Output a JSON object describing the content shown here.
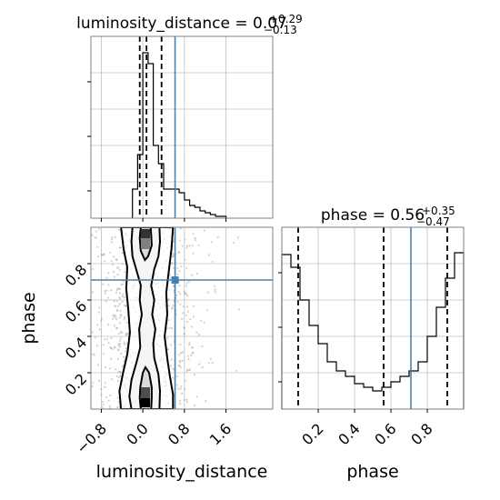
{
  "chart_data": {
    "type": "corner",
    "parameters": [
      "luminosity_distance",
      "phase"
    ],
    "truth": {
      "luminosity_distance": 0.62,
      "phase": 0.71
    },
    "colors": {
      "truth": "#4682b4",
      "hist": "#000000",
      "grid": "#c0c0c0",
      "frame": "#808080"
    },
    "panels": {
      "hist_luminosity_distance": {
        "type": "histogram",
        "title_prefix": "luminosity_distance = ",
        "value": "0.07",
        "err_plus": "+0.29",
        "err_minus": "−0.13",
        "xlim": [
          -1.0,
          2.5
        ],
        "ylim": [
          0,
          100
        ],
        "bin_edges": [
          -0.2,
          -0.1,
          0.0,
          0.1,
          0.2,
          0.3,
          0.4,
          0.5,
          0.6,
          0.7,
          0.8,
          0.9,
          1.0,
          1.1,
          1.2,
          1.3,
          1.4,
          1.5,
          1.6
        ],
        "counts": [
          16,
          35,
          91,
          85,
          40,
          30,
          16,
          16,
          16,
          14,
          10,
          7,
          6,
          4,
          3,
          2,
          1,
          1
        ],
        "quantiles": [
          -0.06,
          0.07,
          0.36
        ]
      },
      "hist_phase": {
        "type": "histogram",
        "title_prefix": "phase = ",
        "value": "0.56",
        "err_plus": "+0.35",
        "err_minus": "−0.47",
        "xlim": [
          0.0,
          1.0
        ],
        "ylim": [
          0,
          100
        ],
        "bin_edges": [
          0.0,
          0.05,
          0.1,
          0.15,
          0.2,
          0.25,
          0.3,
          0.35,
          0.4,
          0.45,
          0.5,
          0.55,
          0.6,
          0.65,
          0.7,
          0.75,
          0.8,
          0.85,
          0.9,
          0.95,
          1.0
        ],
        "counts": [
          85,
          78,
          60,
          46,
          36,
          26,
          21,
          18,
          14,
          12,
          10,
          12,
          15,
          18,
          21,
          26,
          40,
          56,
          72,
          86
        ],
        "quantiles": [
          0.09,
          0.56,
          0.91
        ]
      },
      "joint": {
        "type": "contour",
        "x": "luminosity_distance",
        "y": "phase",
        "xlim": [
          -1.0,
          2.5
        ],
        "ylim": [
          0.0,
          1.0
        ],
        "xticks": [
          "−0.8",
          "0.0",
          "0.8",
          "1.6"
        ],
        "xtick_values": [
          -0.8,
          0.0,
          0.8,
          1.6
        ],
        "yticks": [
          "0.2",
          "0.4",
          "0.6",
          "0.8"
        ],
        "ytick_values": [
          0.2,
          0.4,
          0.6,
          0.8
        ],
        "hot_spots": [
          {
            "x": 0.05,
            "y": 0.04,
            "value": 1.0
          },
          {
            "x": 0.05,
            "y": 0.09,
            "value": 0.7
          },
          {
            "x": 0.05,
            "y": 0.96,
            "value": 0.8
          },
          {
            "x": 0.05,
            "y": 0.91,
            "value": 0.5
          }
        ],
        "contours": [
          {
            "level": "1-sigma-lower",
            "points": [
              [
                -0.04,
                0.0
              ],
              [
                -0.06,
                0.06
              ],
              [
                -0.05,
                0.12
              ],
              [
                0.0,
                0.2
              ],
              [
                0.05,
                0.23
              ],
              [
                0.12,
                0.2
              ],
              [
                0.17,
                0.12
              ],
              [
                0.17,
                0.06
              ],
              [
                0.16,
                0.0
              ]
            ]
          },
          {
            "level": "1-sigma-upper",
            "points": [
              [
                -0.04,
                1.0
              ],
              [
                -0.06,
                0.94
              ],
              [
                -0.04,
                0.87
              ],
              [
                0.04,
                0.82
              ],
              [
                0.1,
                0.84
              ],
              [
                0.17,
                0.9
              ],
              [
                0.16,
                0.96
              ],
              [
                0.15,
                1.0
              ]
            ]
          },
          {
            "level": "2-sigma",
            "points": [
              [
                -0.22,
                0.0
              ],
              [
                -0.26,
                0.07
              ],
              [
                -0.22,
                0.16
              ],
              [
                -0.12,
                0.26
              ],
              [
                -0.05,
                0.34
              ],
              [
                -0.07,
                0.44
              ],
              [
                -0.02,
                0.52
              ],
              [
                -0.06,
                0.6
              ],
              [
                -0.04,
                0.68
              ],
              [
                -0.12,
                0.76
              ],
              [
                -0.2,
                0.84
              ],
              [
                -0.22,
                0.92
              ],
              [
                -0.2,
                1.0
              ],
              [
                0.32,
                1.0
              ],
              [
                0.33,
                0.92
              ],
              [
                0.3,
                0.84
              ],
              [
                0.22,
                0.77
              ],
              [
                0.16,
                0.68
              ],
              [
                0.22,
                0.6
              ],
              [
                0.18,
                0.52
              ],
              [
                0.24,
                0.44
              ],
              [
                0.2,
                0.36
              ],
              [
                0.22,
                0.28
              ],
              [
                0.3,
                0.19
              ],
              [
                0.33,
                0.1
              ],
              [
                0.32,
                0.0
              ]
            ]
          },
          {
            "level": "3-sigma",
            "points": [
              [
                -0.42,
                0.0
              ],
              [
                -0.45,
                0.1
              ],
              [
                -0.38,
                0.2
              ],
              [
                -0.3,
                0.3
              ],
              [
                -0.25,
                0.42
              ],
              [
                -0.28,
                0.55
              ],
              [
                -0.32,
                0.66
              ],
              [
                -0.3,
                0.78
              ],
              [
                -0.37,
                0.88
              ],
              [
                -0.42,
                1.0
              ],
              [
                0.58,
                1.0
              ],
              [
                0.55,
                0.88
              ],
              [
                0.5,
                0.76
              ],
              [
                0.45,
                0.64
              ],
              [
                0.47,
                0.52
              ],
              [
                0.42,
                0.4
              ],
              [
                0.47,
                0.28
              ],
              [
                0.52,
                0.18
              ],
              [
                0.58,
                0.08
              ],
              [
                0.58,
                0.0
              ]
            ]
          }
        ]
      },
      "phase_axis": {
        "xticks": [
          "0.2",
          "0.4",
          "0.6",
          "0.8"
        ],
        "xtick_values": [
          0.2,
          0.4,
          0.6,
          0.8
        ]
      }
    },
    "xlabel_left": "luminosity_distance",
    "xlabel_right": "phase",
    "ylabel": "phase"
  }
}
